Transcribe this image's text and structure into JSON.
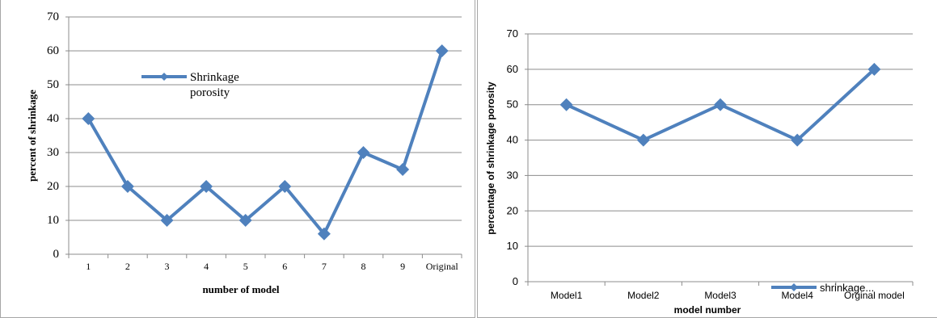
{
  "chart_data": [
    {
      "type": "line",
      "title": "",
      "xlabel": "number of model",
      "ylabel": "percent of shrinkage",
      "categories": [
        "1",
        "2",
        "3",
        "4",
        "5",
        "6",
        "7",
        "8",
        "9",
        "Original"
      ],
      "series": [
        {
          "name": "Shrinkage porosity",
          "values": [
            40,
            20,
            10,
            20,
            10,
            20,
            6,
            30,
            25,
            60
          ]
        }
      ],
      "ylim": [
        0,
        70
      ],
      "yticks": [
        0,
        10,
        20,
        30,
        40,
        50,
        60,
        70
      ],
      "grid": true,
      "legend": "upper-left inside plot",
      "legend_lines": [
        "Shrinkage",
        "porosity"
      ],
      "color": "#4f81bd"
    },
    {
      "type": "line",
      "title": "",
      "xlabel": "model number",
      "ylabel": "percentage of shrinkage porosity",
      "categories": [
        "Model1",
        "Model2",
        "Model3",
        "Model4",
        "Orginal model"
      ],
      "series": [
        {
          "name": "shrinkage...",
          "values": [
            50,
            40,
            50,
            40,
            60
          ]
        }
      ],
      "ylim": [
        0,
        70
      ],
      "yticks": [
        0,
        10,
        20,
        30,
        40,
        50,
        60,
        70
      ],
      "grid": true,
      "legend": "bottom-right inside plot",
      "legend_lines": [
        "shrinkage..."
      ],
      "color": "#4f81bd"
    }
  ]
}
